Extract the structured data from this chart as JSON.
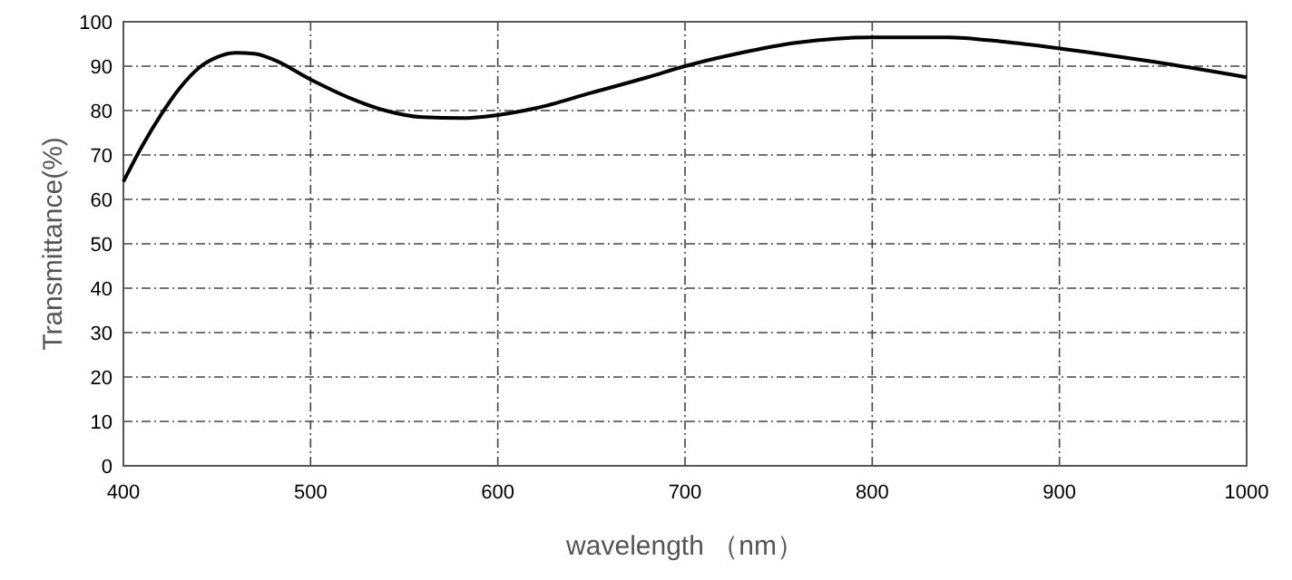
{
  "chart_data": {
    "type": "line",
    "xlabel": "wavelength （nm）",
    "ylabel": "Transmittance(%)",
    "x": [
      400,
      410,
      420,
      430,
      440,
      450,
      460,
      470,
      480,
      500,
      520,
      540,
      560,
      580,
      600,
      620,
      650,
      680,
      700,
      730,
      760,
      800,
      840,
      870,
      900,
      950,
      1000
    ],
    "series": [
      {
        "color": "#000000",
        "values": [
          64,
          72,
          79,
          85,
          89.5,
          92,
          93,
          92.8,
          91.5,
          87,
          83,
          80,
          78.5,
          78.3,
          79,
          80.5,
          84,
          87.5,
          90,
          93,
          95.3,
          96.5,
          96.5,
          95.5,
          94,
          91,
          87.5
        ]
      }
    ],
    "xlim": [
      400,
      1000
    ],
    "xticks": [
      400,
      500,
      600,
      700,
      800,
      900,
      1000
    ],
    "ylim": [
      0,
      100
    ],
    "yticks": [
      0,
      10,
      20,
      30,
      40,
      50,
      60,
      70,
      80,
      90,
      100
    ],
    "grid": true,
    "marker": "none",
    "line_style": "solid"
  }
}
